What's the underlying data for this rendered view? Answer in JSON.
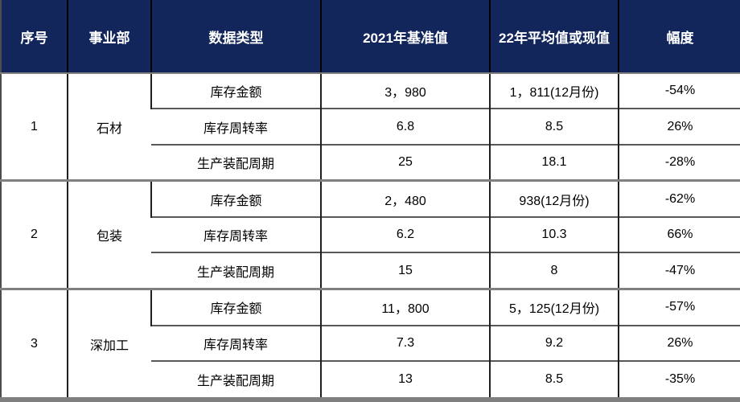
{
  "colors": {
    "header_bg": "#12265c",
    "header_text": "#ffffff",
    "body_text": "#000000",
    "inner_border": "#595959",
    "group_border": "#808080",
    "vertical_border": "#1f1f1f",
    "bottom_bar": "#7f7f7f"
  },
  "chart_data": {
    "type": "table",
    "columns": [
      "序号",
      "事业部",
      "数据类型",
      "2021年基准值",
      "22年平均值或现值",
      "幅度"
    ],
    "groups": [
      {
        "index": "1",
        "division": "石材",
        "rows": [
          {
            "type": "库存金额",
            "baseline": "3，980",
            "current": "1，811(12月份)",
            "change": "-54%"
          },
          {
            "type": "库存周转率",
            "baseline": "6.8",
            "current": "8.5",
            "change": "26%"
          },
          {
            "type": "生产装配周期",
            "baseline": "25",
            "current": "18.1",
            "change": "-28%"
          }
        ]
      },
      {
        "index": "2",
        "division": "包装",
        "rows": [
          {
            "type": "库存金额",
            "baseline": "2，480",
            "current": "938(12月份)",
            "change": "-62%"
          },
          {
            "type": "库存周转率",
            "baseline": "6.2",
            "current": "10.3",
            "change": "66%"
          },
          {
            "type": "生产装配周期",
            "baseline": "15",
            "current": "8",
            "change": "-47%"
          }
        ]
      },
      {
        "index": "3",
        "division": "深加工",
        "rows": [
          {
            "type": "库存金额",
            "baseline": "11，800",
            "current": "5，125(12月份)",
            "change": "-57%"
          },
          {
            "type": "库存周转率",
            "baseline": "7.3",
            "current": "9.2",
            "change": "26%"
          },
          {
            "type": "生产装配周期",
            "baseline": "13",
            "current": "8.5",
            "change": "-35%"
          }
        ]
      }
    ]
  }
}
